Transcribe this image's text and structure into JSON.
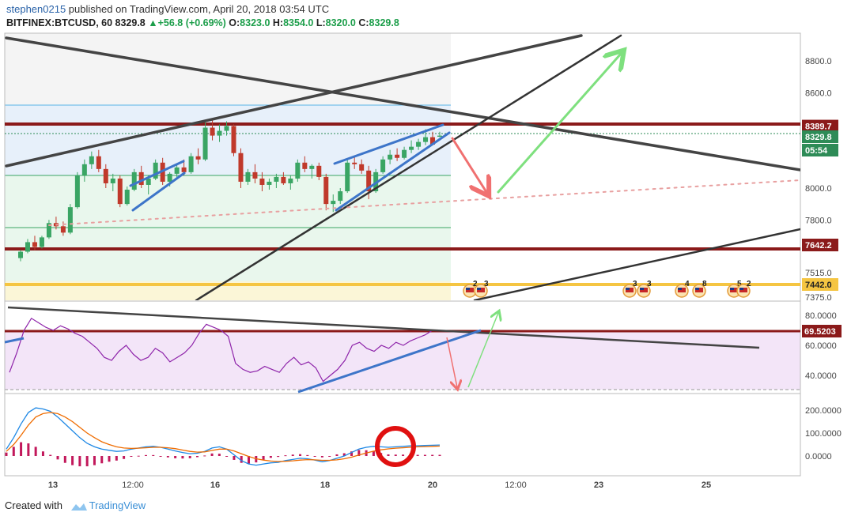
{
  "header": {
    "user": "stephen0215",
    "published": " published on TradingView.com, April 20, 2018 03:54 UTC",
    "symbol": "BITFINEX:BTCUSD, 60",
    "last": "8329.8",
    "change": "+56.8 (+0.69%)",
    "o_label": "O:",
    "o": "8323.0",
    "h_label": "H:",
    "h": "8354.0",
    "l_label": "L:",
    "l": "8320.0",
    "c_label": "C:",
    "c": "8329.8"
  },
  "footer": {
    "created_with": "Created with",
    "brand": "TradingView"
  },
  "colors": {
    "up": "#3aa564",
    "down": "#c0392b",
    "resistance": "#8b1a1a",
    "support_yellow": "#f5c542",
    "rsi": "#8e24aa",
    "macd": "#1e88e5",
    "signal": "#ef6c00"
  },
  "chart_data": [
    {
      "type": "candlestick",
      "panel": "price",
      "y_tick_labels": [
        "8800.0",
        "8600.0",
        "8000.0",
        "7800.0",
        "7515.0",
        "7375.0"
      ],
      "y_ticks": [
        8800,
        8600,
        8000,
        7800,
        7515,
        7375
      ],
      "badges": [
        {
          "value": 8389.7,
          "label": "8389.7",
          "color": "#8b1a1a"
        },
        {
          "value": 8329.8,
          "label": "8329.8",
          "color": "#2e8b57"
        },
        {
          "value": 8248,
          "label": "05:54",
          "color": "#2e8b57"
        },
        {
          "value": 7642.2,
          "label": "7642.2",
          "color": "#8b1a1a"
        },
        {
          "value": 7442.0,
          "label": "7442.0",
          "color": "#f5c542"
        }
      ],
      "x_tick_labels": [
        "13",
        "12:00",
        "16",
        "18",
        "20",
        "12:00",
        "23",
        "25"
      ],
      "event_markers": [
        "2",
        "3",
        "3",
        "3",
        "4",
        "8",
        "5",
        "2"
      ],
      "ohlc": [
        [
          7560,
          7610,
          7540,
          7600
        ],
        [
          7600,
          7680,
          7590,
          7660
        ],
        [
          7660,
          7700,
          7610,
          7630
        ],
        [
          7630,
          7700,
          7620,
          7690
        ],
        [
          7690,
          7800,
          7680,
          7780
        ],
        [
          7780,
          7820,
          7740,
          7760
        ],
        [
          7760,
          7790,
          7700,
          7720
        ],
        [
          7720,
          7900,
          7710,
          7880
        ],
        [
          7880,
          8100,
          7870,
          8080
        ],
        [
          8080,
          8180,
          8040,
          8150
        ],
        [
          8150,
          8230,
          8120,
          8200
        ],
        [
          8200,
          8240,
          8100,
          8120
        ],
        [
          8120,
          8150,
          8000,
          8030
        ],
        [
          8030,
          8090,
          7980,
          8060
        ],
        [
          8060,
          8080,
          7880,
          7900
        ],
        [
          7900,
          8010,
          7890,
          7990
        ],
        [
          7990,
          8120,
          7980,
          8100
        ],
        [
          8100,
          8140,
          8000,
          8020
        ],
        [
          8020,
          8080,
          7960,
          8060
        ],
        [
          8060,
          8180,
          8050,
          8160
        ],
        [
          8160,
          8190,
          8020,
          8040
        ],
        [
          8040,
          8100,
          8010,
          8090
        ],
        [
          8090,
          8150,
          8060,
          8130
        ],
        [
          8130,
          8180,
          8080,
          8100
        ],
        [
          8100,
          8220,
          8090,
          8200
        ],
        [
          8200,
          8250,
          8150,
          8180
        ],
        [
          8180,
          8420,
          8170,
          8380
        ],
        [
          8380,
          8430,
          8300,
          8330
        ],
        [
          8330,
          8400,
          8290,
          8360
        ],
        [
          8360,
          8420,
          8330,
          8390
        ],
        [
          8390,
          8400,
          8200,
          8220
        ],
        [
          8220,
          8250,
          8000,
          8040
        ],
        [
          8040,
          8120,
          8020,
          8100
        ],
        [
          8100,
          8150,
          8030,
          8060
        ],
        [
          8060,
          8100,
          7980,
          8020
        ],
        [
          8020,
          8060,
          7990,
          8040
        ],
        [
          8040,
          8090,
          8000,
          8070
        ],
        [
          8070,
          8100,
          8020,
          8030
        ],
        [
          8030,
          8080,
          7990,
          8060
        ],
        [
          8060,
          8180,
          8040,
          8160
        ],
        [
          8160,
          8200,
          8100,
          8120
        ],
        [
          8120,
          8150,
          8060,
          8140
        ],
        [
          8140,
          8160,
          8050,
          8070
        ],
        [
          8070,
          8090,
          7860,
          7900
        ],
        [
          7900,
          7960,
          7850,
          7920
        ],
        [
          7920,
          8000,
          7900,
          7980
        ],
        [
          7980,
          8180,
          7970,
          8160
        ],
        [
          8160,
          8200,
          8120,
          8150
        ],
        [
          8150,
          8180,
          8090,
          8110
        ],
        [
          8110,
          8140,
          7930,
          7980
        ],
        [
          7980,
          8120,
          7970,
          8100
        ],
        [
          8100,
          8200,
          8090,
          8180
        ],
        [
          8180,
          8240,
          8150,
          8210
        ],
        [
          8210,
          8250,
          8170,
          8190
        ],
        [
          8190,
          8260,
          8180,
          8240
        ],
        [
          8240,
          8300,
          8220,
          8260
        ],
        [
          8260,
          8310,
          8240,
          8290
        ],
        [
          8290,
          8370,
          8270,
          8320
        ],
        [
          8320,
          8354,
          8273,
          8273
        ],
        [
          8323,
          8354,
          8320,
          8329.8
        ]
      ]
    },
    {
      "type": "line",
      "panel": "rsi",
      "y_tick_labels": [
        "80.0000",
        "60.0000",
        "40.0000"
      ],
      "y_ticks": [
        80,
        60,
        40
      ],
      "badge": {
        "value": 69.5203,
        "label": "69.5203"
      },
      "values": [
        42,
        55,
        70,
        78,
        75,
        72,
        70,
        73,
        71,
        68,
        66,
        62,
        58,
        52,
        50,
        56,
        60,
        54,
        50,
        52,
        58,
        55,
        49,
        52,
        55,
        60,
        68,
        74,
        72,
        70,
        66,
        48,
        44,
        42,
        43,
        46,
        44,
        42,
        48,
        52,
        47,
        49,
        45,
        36,
        40,
        44,
        50,
        60,
        62,
        58,
        56,
        60,
        58,
        62,
        60,
        63,
        65,
        67,
        70,
        69.5
      ]
    },
    {
      "type": "macd",
      "panel": "macd",
      "y_tick_labels": [
        "200.0000",
        "100.0000",
        "0.0000"
      ],
      "y_ticks": [
        200,
        100,
        0
      ],
      "macd": [
        30,
        80,
        140,
        190,
        210,
        205,
        195,
        170,
        140,
        110,
        80,
        55,
        40,
        30,
        25,
        20,
        22,
        30,
        35,
        40,
        42,
        38,
        30,
        22,
        15,
        10,
        12,
        20,
        35,
        40,
        30,
        5,
        -20,
        -35,
        -40,
        -35,
        -30,
        -28,
        -20,
        -15,
        -10,
        -12,
        -18,
        -25,
        -20,
        -10,
        0,
        15,
        30,
        38,
        42,
        40,
        38,
        40,
        42,
        44,
        45,
        46,
        47,
        48
      ],
      "signal": [
        20,
        50,
        90,
        135,
        170,
        185,
        190,
        185,
        170,
        150,
        125,
        100,
        80,
        62,
        50,
        40,
        35,
        33,
        34,
        36,
        38,
        38,
        36,
        32,
        26,
        20,
        17,
        18,
        24,
        30,
        30,
        22,
        10,
        -2,
        -12,
        -18,
        -22,
        -24,
        -23,
        -21,
        -18,
        -16,
        -17,
        -19,
        -19,
        -17,
        -12,
        -5,
        4,
        13,
        21,
        27,
        31,
        34,
        36,
        38,
        40,
        41,
        42,
        43
      ],
      "histogram": [
        15,
        40,
        60,
        55,
        40,
        20,
        5,
        -15,
        -30,
        -40,
        -45,
        -45,
        -40,
        -32,
        -25,
        -20,
        -13,
        -3,
        1,
        4,
        4,
        0,
        -6,
        -10,
        -11,
        -10,
        -5,
        2,
        11,
        10,
        0,
        -17,
        -30,
        -33,
        -28,
        -17,
        -8,
        -4,
        3,
        6,
        8,
        4,
        -1,
        -6,
        -1,
        7,
        12,
        20,
        26,
        25,
        21,
        13,
        7,
        6,
        6,
        6,
        5,
        5,
        5,
        5
      ]
    }
  ]
}
